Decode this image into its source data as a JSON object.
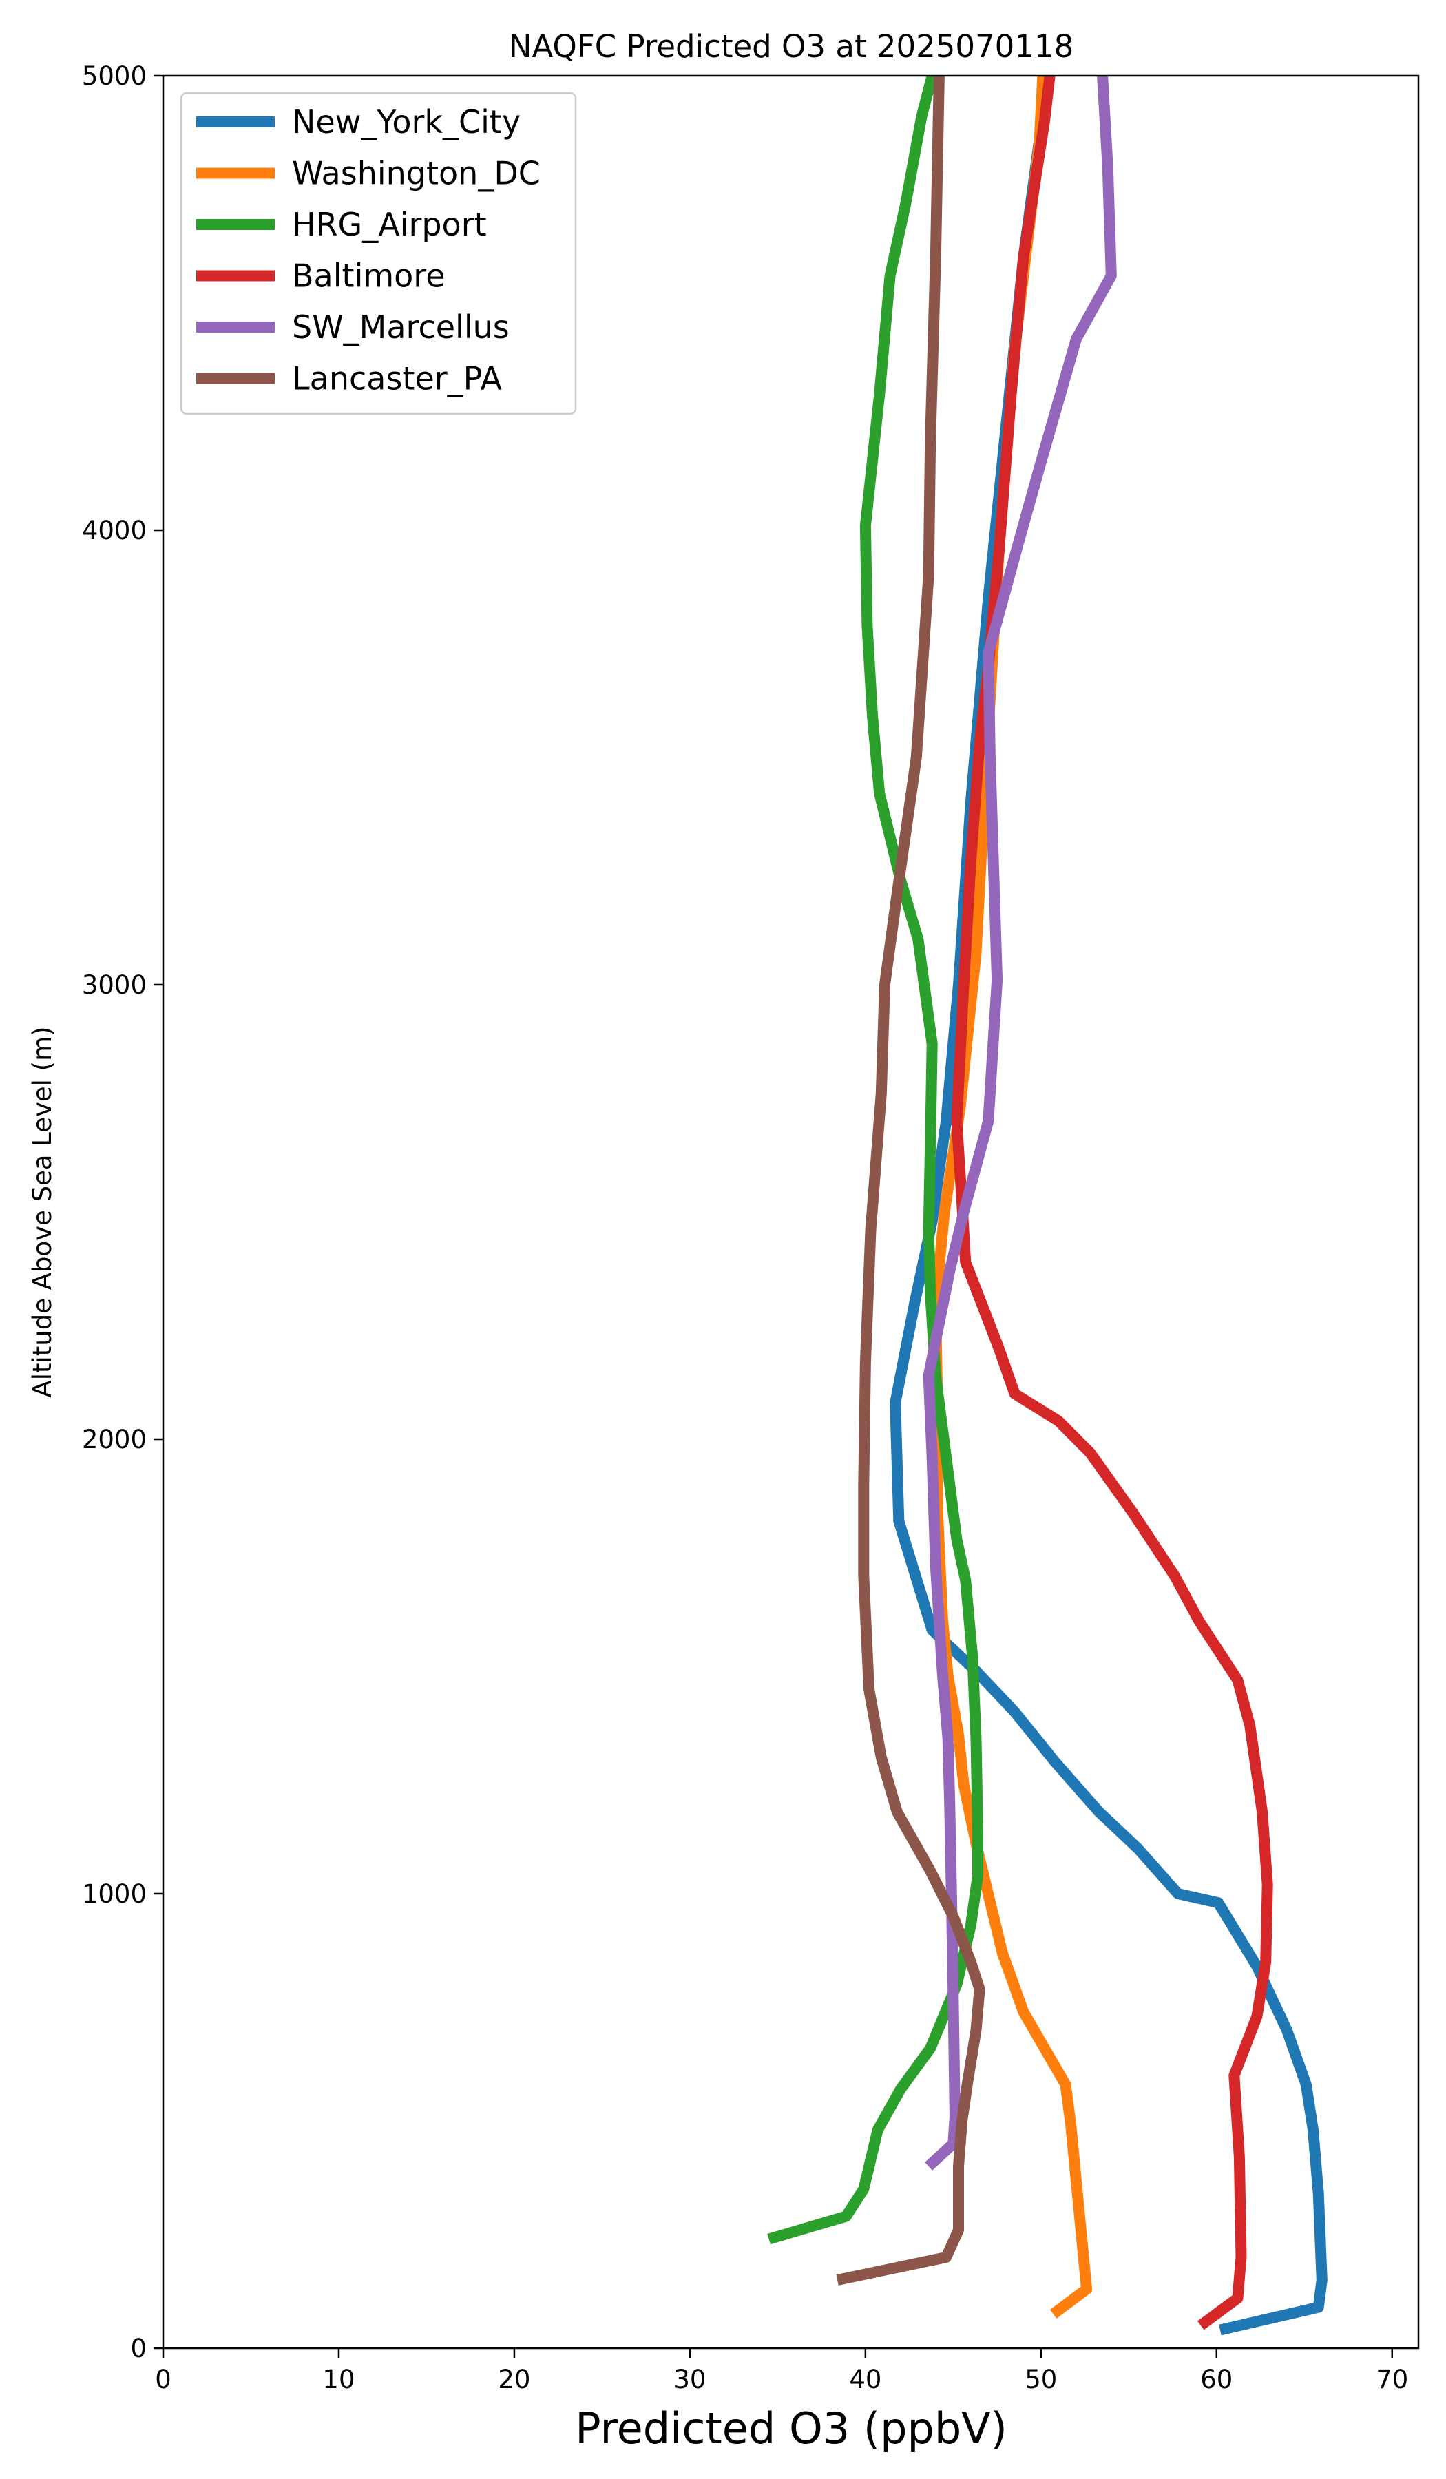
{
  "chart_data": {
    "type": "line",
    "title": "NAQFC Predicted O3 at 2025070118",
    "xlabel": "Predicted O3 (ppbV)",
    "ylabel": "Altitude Above Sea Level (m)",
    "xlim": [
      0,
      71.5
    ],
    "ylim": [
      0,
      5000
    ],
    "xticks": [
      0,
      10,
      20,
      30,
      40,
      50,
      60,
      70
    ],
    "yticks": [
      0,
      1000,
      2000,
      3000,
      4000,
      5000
    ],
    "grid": false,
    "legend_position": "upper-left",
    "series": [
      {
        "name": "New_York_City",
        "color": "#1f77b4",
        "points": [
          [
            60.2,
            40
          ],
          [
            65.8,
            90
          ],
          [
            66.0,
            150
          ],
          [
            65.8,
            340
          ],
          [
            65.5,
            480
          ],
          [
            65.1,
            580
          ],
          [
            64.0,
            700
          ],
          [
            62.3,
            840
          ],
          [
            60.1,
            980
          ],
          [
            57.8,
            1000
          ],
          [
            55.5,
            1100
          ],
          [
            53.3,
            1180
          ],
          [
            50.8,
            1290
          ],
          [
            48.5,
            1400
          ],
          [
            46.3,
            1490
          ],
          [
            43.8,
            1580
          ],
          [
            41.9,
            1820
          ],
          [
            41.7,
            2080
          ],
          [
            42.8,
            2300
          ],
          [
            43.8,
            2480
          ],
          [
            44.6,
            2700
          ],
          [
            45.3,
            3000
          ],
          [
            46.0,
            3400
          ],
          [
            47.0,
            3850
          ],
          [
            48.2,
            4300
          ],
          [
            49.0,
            4600
          ],
          [
            50.4,
            5000
          ]
        ]
      },
      {
        "name": "Washington_DC",
        "color": "#ff7f0e",
        "points": [
          [
            50.7,
            75
          ],
          [
            52.6,
            130
          ],
          [
            52.2,
            290
          ],
          [
            51.7,
            490
          ],
          [
            51.4,
            580
          ],
          [
            50.8,
            620
          ],
          [
            49.0,
            740
          ],
          [
            47.8,
            870
          ],
          [
            46.3,
            1110
          ],
          [
            45.6,
            1240
          ],
          [
            45.3,
            1350
          ],
          [
            44.7,
            1480
          ],
          [
            44.4,
            1600
          ],
          [
            44.1,
            1850
          ],
          [
            44.1,
            2090
          ],
          [
            44.0,
            2300
          ],
          [
            44.5,
            2500
          ],
          [
            45.4,
            2730
          ],
          [
            46.3,
            3070
          ],
          [
            46.9,
            3500
          ],
          [
            47.6,
            3950
          ],
          [
            48.5,
            4400
          ],
          [
            49.9,
            4850
          ],
          [
            50.1,
            5000
          ]
        ]
      },
      {
        "name": "HRG_Airport",
        "color": "#2ca02c",
        "points": [
          [
            34.5,
            240
          ],
          [
            38.9,
            290
          ],
          [
            39.9,
            350
          ],
          [
            40.7,
            480
          ],
          [
            42.0,
            570
          ],
          [
            43.7,
            660
          ],
          [
            45.2,
            800
          ],
          [
            46.0,
            930
          ],
          [
            46.4,
            1040
          ],
          [
            46.4,
            1130
          ],
          [
            46.3,
            1340
          ],
          [
            46.1,
            1520
          ],
          [
            45.7,
            1690
          ],
          [
            45.2,
            1780
          ],
          [
            44.6,
            1960
          ],
          [
            44.0,
            2140
          ],
          [
            43.7,
            2320
          ],
          [
            43.6,
            2460
          ],
          [
            43.7,
            2650
          ],
          [
            43.8,
            2870
          ],
          [
            43.0,
            3100
          ],
          [
            42.0,
            3230
          ],
          [
            40.8,
            3420
          ],
          [
            40.4,
            3590
          ],
          [
            40.1,
            3790
          ],
          [
            40.0,
            4010
          ],
          [
            40.8,
            4300
          ],
          [
            41.4,
            4560
          ],
          [
            42.3,
            4720
          ],
          [
            43.2,
            4910
          ],
          [
            43.8,
            5000
          ]
        ]
      },
      {
        "name": "Baltimore",
        "color": "#d62728",
        "points": [
          [
            59.1,
            50
          ],
          [
            61.2,
            110
          ],
          [
            61.4,
            200
          ],
          [
            61.3,
            420
          ],
          [
            61.0,
            600
          ],
          [
            62.3,
            730
          ],
          [
            62.8,
            850
          ],
          [
            62.9,
            1020
          ],
          [
            62.6,
            1180
          ],
          [
            61.9,
            1370
          ],
          [
            61.2,
            1470
          ],
          [
            59.0,
            1600
          ],
          [
            57.6,
            1700
          ],
          [
            55.2,
            1840
          ],
          [
            52.8,
            1970
          ],
          [
            51.0,
            2040
          ],
          [
            48.5,
            2100
          ],
          [
            47.6,
            2200
          ],
          [
            45.7,
            2390
          ],
          [
            45.5,
            2520
          ],
          [
            45.2,
            2700
          ],
          [
            45.6,
            3000
          ],
          [
            46.0,
            3270
          ],
          [
            46.5,
            3530
          ],
          [
            47.0,
            3700
          ],
          [
            47.6,
            3950
          ],
          [
            48.3,
            4300
          ],
          [
            49.0,
            4600
          ],
          [
            50.2,
            4900
          ],
          [
            50.5,
            5000
          ]
        ]
      },
      {
        "name": "SW_Marcellus",
        "color": "#9467bd",
        "points": [
          [
            43.6,
            400
          ],
          [
            45.0,
            450
          ],
          [
            45.1,
            510
          ],
          [
            45.0,
            780
          ],
          [
            44.9,
            1000
          ],
          [
            44.8,
            1200
          ],
          [
            44.7,
            1340
          ],
          [
            44.4,
            1480
          ],
          [
            44.0,
            1720
          ],
          [
            43.8,
            1960
          ],
          [
            43.6,
            2140
          ],
          [
            44.8,
            2370
          ],
          [
            45.6,
            2500
          ],
          [
            47.0,
            2700
          ],
          [
            47.5,
            3010
          ],
          [
            47.1,
            3500
          ],
          [
            47.0,
            3730
          ],
          [
            48.7,
            3970
          ],
          [
            50.0,
            4150
          ],
          [
            52.0,
            4420
          ],
          [
            54.0,
            4560
          ],
          [
            53.8,
            4800
          ],
          [
            53.5,
            5000
          ]
        ]
      },
      {
        "name": "Lancaster_PA",
        "color": "#8c564b",
        "points": [
          [
            38.4,
            150
          ],
          [
            44.6,
            200
          ],
          [
            45.3,
            260
          ],
          [
            45.3,
            400
          ],
          [
            45.5,
            500
          ],
          [
            45.8,
            580
          ],
          [
            46.3,
            700
          ],
          [
            46.5,
            790
          ],
          [
            46.0,
            850
          ],
          [
            45.0,
            950
          ],
          [
            43.7,
            1050
          ],
          [
            41.8,
            1180
          ],
          [
            40.9,
            1300
          ],
          [
            40.2,
            1450
          ],
          [
            39.9,
            1700
          ],
          [
            39.9,
            1900
          ],
          [
            40.0,
            2170
          ],
          [
            40.3,
            2460
          ],
          [
            40.9,
            2760
          ],
          [
            41.1,
            3000
          ],
          [
            41.8,
            3200
          ],
          [
            42.9,
            3500
          ],
          [
            43.6,
            3900
          ],
          [
            43.7,
            4200
          ],
          [
            44.0,
            4600
          ],
          [
            44.2,
            5000
          ]
        ]
      }
    ]
  }
}
